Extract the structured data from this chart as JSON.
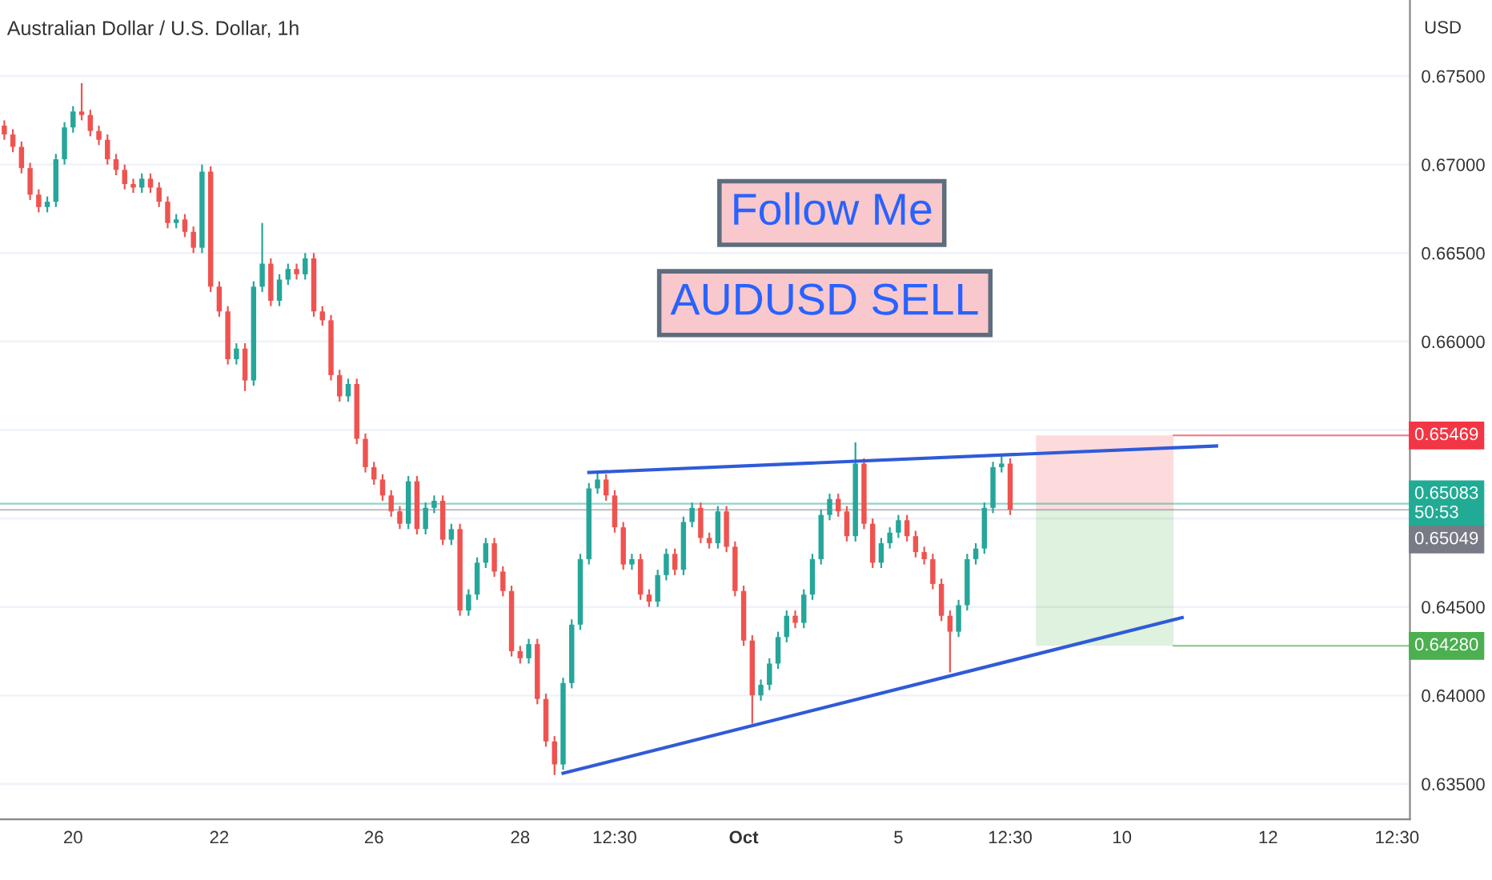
{
  "chart_data": {
    "type": "candlestick",
    "title": "Australian Dollar / U.S. Dollar, 1h",
    "ylabel": "USD",
    "categories": [
      null,
      null,
      null,
      null,
      null,
      null,
      null,
      null,
      "20",
      null,
      null,
      null,
      null,
      null,
      null,
      null,
      null,
      null,
      null,
      null,
      null,
      null,
      null,
      null,
      null,
      "22",
      null,
      null,
      null,
      null,
      null,
      null,
      null,
      null,
      null,
      null,
      null,
      null,
      null,
      null,
      null,
      null,
      null,
      "26",
      null,
      null,
      null,
      null,
      null,
      null,
      null,
      null,
      null,
      null,
      null,
      null,
      null,
      null,
      null,
      null,
      "28",
      null,
      null,
      null,
      null,
      null,
      null,
      null,
      null,
      null,
      null,
      "12:30",
      null,
      null,
      null,
      null,
      null,
      null,
      null,
      null,
      null,
      null,
      null,
      null,
      null,
      null,
      "Oct",
      null,
      null,
      null,
      null,
      null,
      null,
      null,
      null,
      null,
      null,
      null,
      null,
      null,
      null,
      null,
      null,
      null,
      "5",
      null,
      null,
      null,
      null,
      null,
      null,
      null,
      null,
      null,
      null,
      null,
      null,
      "12:30",
      null,
      null,
      null,
      null,
      null,
      null,
      null,
      null,
      null,
      null,
      null,
      null,
      "10",
      null,
      null,
      null,
      null,
      null,
      null,
      null,
      null,
      null,
      null,
      null,
      null,
      null,
      null,
      null,
      null,
      "12",
      null,
      null,
      null,
      null,
      null,
      null,
      null,
      null,
      null,
      null,
      null,
      null,
      null,
      null,
      "12:30",
      null
    ],
    "ohlc": [
      [
        0.6722,
        0.6725,
        0.6714,
        0.6717
      ],
      [
        0.6717,
        0.672,
        0.6707,
        0.671
      ],
      [
        0.671,
        0.6713,
        0.6695,
        0.6698
      ],
      [
        0.6698,
        0.6701,
        0.668,
        0.6683
      ],
      [
        0.6683,
        0.6686,
        0.6673,
        0.6676
      ],
      [
        0.6676,
        0.6682,
        0.6673,
        0.6679
      ],
      [
        0.6679,
        0.6706,
        0.6676,
        0.6703
      ],
      [
        0.6703,
        0.6724,
        0.67,
        0.6721
      ],
      [
        0.6721,
        0.6733,
        0.6718,
        0.673
      ],
      [
        0.673,
        0.6746,
        0.6725,
        0.6728
      ],
      [
        0.6728,
        0.6731,
        0.6716,
        0.6719
      ],
      [
        0.6719,
        0.6722,
        0.6711,
        0.6714
      ],
      [
        0.6714,
        0.6717,
        0.67,
        0.6703
      ],
      [
        0.6703,
        0.6706,
        0.6694,
        0.6697
      ],
      [
        0.6697,
        0.67,
        0.6686,
        0.6689
      ],
      [
        0.6689,
        0.6692,
        0.6684,
        0.6687
      ],
      [
        0.6687,
        0.6695,
        0.6684,
        0.6692
      ],
      [
        0.6692,
        0.6695,
        0.6684,
        0.6687
      ],
      [
        0.6687,
        0.669,
        0.6676,
        0.6679
      ],
      [
        0.6679,
        0.6682,
        0.6664,
        0.6667
      ],
      [
        0.6667,
        0.6672,
        0.6664,
        0.6669
      ],
      [
        0.6669,
        0.6672,
        0.6659,
        0.6662
      ],
      [
        0.6662,
        0.6665,
        0.665,
        0.6653
      ],
      [
        0.6653,
        0.67,
        0.665,
        0.6696
      ],
      [
        0.6696,
        0.6699,
        0.6628,
        0.6631
      ],
      [
        0.6631,
        0.6634,
        0.6614,
        0.6617
      ],
      [
        0.6617,
        0.662,
        0.6587,
        0.659
      ],
      [
        0.659,
        0.6599,
        0.6587,
        0.6596
      ],
      [
        0.6596,
        0.6599,
        0.6572,
        0.6578
      ],
      [
        0.6578,
        0.6634,
        0.6575,
        0.6631
      ],
      [
        0.6631,
        0.6667,
        0.6628,
        0.6644
      ],
      [
        0.6644,
        0.6647,
        0.662,
        0.6623
      ],
      [
        0.6623,
        0.6638,
        0.662,
        0.6635
      ],
      [
        0.6635,
        0.6644,
        0.6632,
        0.6641
      ],
      [
        0.6641,
        0.6644,
        0.6635,
        0.6638
      ],
      [
        0.6638,
        0.665,
        0.6635,
        0.6647
      ],
      [
        0.6647,
        0.665,
        0.6614,
        0.6617
      ],
      [
        0.6617,
        0.662,
        0.6609,
        0.6612
      ],
      [
        0.6612,
        0.6615,
        0.6578,
        0.6581
      ],
      [
        0.6581,
        0.6584,
        0.6566,
        0.6569
      ],
      [
        0.6569,
        0.6579,
        0.6566,
        0.6576
      ],
      [
        0.6576,
        0.6579,
        0.6542,
        0.6545
      ],
      [
        0.6545,
        0.6548,
        0.6526,
        0.6529
      ],
      [
        0.6529,
        0.6532,
        0.6519,
        0.6522
      ],
      [
        0.6522,
        0.6525,
        0.651,
        0.6513
      ],
      [
        0.6513,
        0.6516,
        0.6501,
        0.6504
      ],
      [
        0.6504,
        0.6507,
        0.6494,
        0.6497
      ],
      [
        0.6497,
        0.6524,
        0.6494,
        0.6521
      ],
      [
        0.6521,
        0.6524,
        0.6491,
        0.6494
      ],
      [
        0.6494,
        0.6509,
        0.6491,
        0.6506
      ],
      [
        0.6506,
        0.6513,
        0.6503,
        0.651
      ],
      [
        0.651,
        0.6513,
        0.6485,
        0.6488
      ],
      [
        0.6488,
        0.6497,
        0.6485,
        0.6494
      ],
      [
        0.6494,
        0.6497,
        0.6445,
        0.6448
      ],
      [
        0.6448,
        0.646,
        0.6445,
        0.6457
      ],
      [
        0.6457,
        0.6478,
        0.6454,
        0.6475
      ],
      [
        0.6475,
        0.6489,
        0.6472,
        0.6486
      ],
      [
        0.6486,
        0.6489,
        0.6467,
        0.647
      ],
      [
        0.647,
        0.6473,
        0.6456,
        0.6459
      ],
      [
        0.6459,
        0.6462,
        0.6422,
        0.6425
      ],
      [
        0.6425,
        0.6428,
        0.6418,
        0.6421
      ],
      [
        0.6421,
        0.6432,
        0.6418,
        0.6429
      ],
      [
        0.6429,
        0.6432,
        0.6395,
        0.6398
      ],
      [
        0.6398,
        0.6401,
        0.6371,
        0.6374
      ],
      [
        0.6374,
        0.6377,
        0.6355,
        0.6361
      ],
      [
        0.6361,
        0.641,
        0.6358,
        0.6407
      ],
      [
        0.6407,
        0.6443,
        0.6404,
        0.644
      ],
      [
        0.644,
        0.648,
        0.6437,
        0.6477
      ],
      [
        0.6477,
        0.652,
        0.6474,
        0.6517
      ],
      [
        0.6517,
        0.6526,
        0.6514,
        0.6522
      ],
      [
        0.6522,
        0.6525,
        0.651,
        0.6513
      ],
      [
        0.6513,
        0.6516,
        0.6492,
        0.6495
      ],
      [
        0.6495,
        0.6498,
        0.6471,
        0.6474
      ],
      [
        0.6474,
        0.648,
        0.6471,
        0.6477
      ],
      [
        0.6477,
        0.648,
        0.6454,
        0.6457
      ],
      [
        0.6457,
        0.646,
        0.645,
        0.6453
      ],
      [
        0.6453,
        0.6471,
        0.645,
        0.6468
      ],
      [
        0.6468,
        0.6483,
        0.6465,
        0.648
      ],
      [
        0.648,
        0.6483,
        0.6468,
        0.6471
      ],
      [
        0.6471,
        0.6501,
        0.6468,
        0.6498
      ],
      [
        0.6498,
        0.6509,
        0.6495,
        0.6506
      ],
      [
        0.6506,
        0.6509,
        0.6486,
        0.6489
      ],
      [
        0.6489,
        0.6492,
        0.6483,
        0.6486
      ],
      [
        0.6486,
        0.6507,
        0.6483,
        0.6504
      ],
      [
        0.6504,
        0.6507,
        0.6481,
        0.6484
      ],
      [
        0.6484,
        0.6487,
        0.6456,
        0.6459
      ],
      [
        0.6459,
        0.6462,
        0.6428,
        0.6431
      ],
      [
        0.6431,
        0.6434,
        0.6384,
        0.64
      ],
      [
        0.64,
        0.6409,
        0.6397,
        0.6406
      ],
      [
        0.6406,
        0.6421,
        0.6403,
        0.6418
      ],
      [
        0.6418,
        0.6436,
        0.6415,
        0.6433
      ],
      [
        0.6433,
        0.6448,
        0.643,
        0.6445
      ],
      [
        0.6445,
        0.6448,
        0.6438,
        0.6441
      ],
      [
        0.6441,
        0.646,
        0.6438,
        0.6457
      ],
      [
        0.6457,
        0.648,
        0.6454,
        0.6477
      ],
      [
        0.6477,
        0.6505,
        0.6474,
        0.6502
      ],
      [
        0.6502,
        0.6514,
        0.6499,
        0.6511
      ],
      [
        0.6511,
        0.6514,
        0.6501,
        0.6504
      ],
      [
        0.6504,
        0.6507,
        0.6487,
        0.649
      ],
      [
        0.649,
        0.6543,
        0.6487,
        0.6531
      ],
      [
        0.6531,
        0.6534,
        0.6494,
        0.6497
      ],
      [
        0.6497,
        0.65,
        0.6472,
        0.6475
      ],
      [
        0.6475,
        0.6489,
        0.6472,
        0.6486
      ],
      [
        0.6486,
        0.6495,
        0.6483,
        0.6492
      ],
      [
        0.6492,
        0.6502,
        0.6489,
        0.6499
      ],
      [
        0.6499,
        0.6502,
        0.6487,
        0.649
      ],
      [
        0.649,
        0.6493,
        0.6478,
        0.6481
      ],
      [
        0.6481,
        0.6484,
        0.6474,
        0.6477
      ],
      [
        0.6477,
        0.648,
        0.646,
        0.6463
      ],
      [
        0.6463,
        0.6466,
        0.6442,
        0.6445
      ],
      [
        0.6445,
        0.6448,
        0.6413,
        0.6436
      ],
      [
        0.6436,
        0.6454,
        0.6433,
        0.6451
      ],
      [
        0.6451,
        0.648,
        0.6448,
        0.6477
      ],
      [
        0.6477,
        0.6486,
        0.6474,
        0.6483
      ],
      [
        0.6483,
        0.6509,
        0.648,
        0.6506
      ],
      [
        0.6506,
        0.6532,
        0.6503,
        0.6529
      ],
      [
        0.6529,
        0.6536,
        0.6526,
        0.6531
      ],
      [
        0.6531,
        0.6534,
        0.6502,
        0.6505
      ],
      null,
      null,
      null,
      null,
      null,
      null,
      null,
      null,
      null,
      null,
      null,
      null,
      null,
      null,
      null,
      null,
      null,
      null,
      null,
      null,
      null,
      null,
      null,
      null,
      null,
      null,
      null,
      null,
      null,
      null,
      null,
      null,
      null,
      null,
      null,
      null,
      null,
      null,
      null,
      null,
      null,
      null,
      null,
      null,
      null,
      null
    ],
    "colors": [
      "#ef5350",
      "#ef5350",
      "#ef5350",
      "#ef5350",
      "#ef5350",
      "#26a69a",
      "#26a69a",
      "#26a69a",
      "#26a69a",
      "#ef5350",
      "#ef5350",
      "#ef5350",
      "#ef5350",
      "#ef5350",
      "#ef5350",
      "#ef5350",
      "#26a69a",
      "#ef5350",
      "#ef5350",
      "#ef5350",
      "#26a69a",
      "#ef5350",
      "#ef5350",
      "#26a69a",
      "#ef5350",
      "#ef5350",
      "#ef5350",
      "#26a69a",
      "#ef5350",
      "#26a69a",
      "#26a69a",
      "#ef5350",
      "#26a69a",
      "#26a69a",
      "#ef5350",
      "#26a69a",
      "#ef5350",
      "#ef5350",
      "#ef5350",
      "#ef5350",
      "#26a69a",
      "#ef5350",
      "#ef5350",
      "#ef5350",
      "#ef5350",
      "#ef5350",
      "#ef5350",
      "#26a69a",
      "#ef5350",
      "#26a69a",
      "#26a69a",
      "#ef5350",
      "#26a69a",
      "#ef5350",
      "#26a69a",
      "#26a69a",
      "#26a69a",
      "#ef5350",
      "#ef5350",
      "#ef5350",
      "#ef5350",
      "#26a69a",
      "#ef5350",
      "#ef5350",
      "#ef5350",
      "#26a69a",
      "#26a69a",
      "#26a69a",
      "#26a69a",
      "#26a69a",
      "#ef5350",
      "#ef5350",
      "#ef5350",
      "#26a69a",
      "#ef5350",
      "#ef5350",
      "#26a69a",
      "#26a69a",
      "#ef5350",
      "#26a69a",
      "#26a69a",
      "#ef5350",
      "#ef5350",
      "#26a69a",
      "#ef5350",
      "#ef5350",
      "#ef5350",
      "#ef5350",
      "#26a69a",
      "#26a69a",
      "#26a69a",
      "#26a69a",
      "#ef5350",
      "#26a69a",
      "#26a69a",
      "#26a69a",
      "#26a69a",
      "#ef5350",
      "#ef5350",
      "#26a69a",
      "#ef5350",
      "#ef5350",
      "#26a69a",
      "#26a69a",
      "#26a69a",
      "#ef5350",
      "#ef5350",
      "#ef5350",
      "#ef5350",
      "#ef5350",
      "#ef5350",
      "#26a69a",
      "#26a69a",
      "#26a69a",
      "#26a69a",
      "#26a69a",
      "#26a69a",
      "#ef5350",
      null,
      null,
      null,
      null,
      null,
      null,
      null,
      null,
      null,
      null,
      null,
      null,
      null,
      null,
      null,
      null,
      null,
      null,
      null,
      null,
      null,
      null,
      null,
      null,
      null,
      null,
      null,
      null,
      null,
      null,
      null,
      null,
      null,
      null,
      null,
      null,
      null,
      null,
      null,
      null,
      null,
      null,
      null,
      null,
      null,
      null
    ],
    "series": [
      {
        "type": "line",
        "color": "#2f5bd8",
        "values": [
          null,
          null,
          null,
          null,
          null,
          null,
          null,
          null,
          null,
          null,
          null,
          null,
          null,
          null,
          null,
          null,
          null,
          null,
          null,
          null,
          null,
          null,
          null,
          null,
          null,
          null,
          null,
          null,
          null,
          null,
          null,
          null,
          null,
          null,
          null,
          null,
          null,
          null,
          null,
          null,
          null,
          null,
          null,
          null,
          null,
          null,
          null,
          null,
          null,
          null,
          null,
          null,
          null,
          null,
          null,
          null,
          null,
          null,
          null,
          null,
          null,
          null,
          null,
          null,
          null,
          null,
          null,
          null,
          0.6526,
          null,
          null,
          null,
          null,
          null,
          null,
          null,
          null,
          null,
          null,
          null,
          null,
          null,
          null,
          null,
          null,
          null,
          null,
          null,
          null,
          null,
          null,
          null,
          null,
          null,
          null,
          null,
          null,
          null,
          null,
          null,
          null,
          null,
          null,
          null,
          null,
          null,
          null,
          null,
          null,
          null,
          null,
          null,
          null,
          null,
          null,
          null,
          null,
          null,
          null,
          null,
          null,
          null,
          null,
          null,
          null,
          null,
          null,
          null,
          null,
          null,
          null,
          null,
          null,
          null,
          null,
          null,
          null,
          null,
          null,
          null,
          null,
          0.6541,
          null,
          null,
          null,
          null,
          null,
          null,
          null,
          null,
          null,
          null,
          null,
          null,
          null,
          null,
          null,
          null,
          null,
          null,
          null,
          null,
          null,
          null
        ]
      },
      {
        "type": "line",
        "color": "#2f5bd8",
        "values": [
          null,
          null,
          null,
          null,
          null,
          null,
          null,
          null,
          null,
          null,
          null,
          null,
          null,
          null,
          null,
          null,
          null,
          null,
          null,
          null,
          null,
          null,
          null,
          null,
          null,
          null,
          null,
          null,
          null,
          null,
          null,
          null,
          null,
          null,
          null,
          null,
          null,
          null,
          null,
          null,
          null,
          null,
          null,
          null,
          null,
          null,
          null,
          null,
          null,
          null,
          null,
          null,
          null,
          null,
          null,
          null,
          null,
          null,
          null,
          null,
          null,
          null,
          null,
          null,
          null,
          0.6356,
          null,
          null,
          null,
          null,
          null,
          null,
          null,
          null,
          null,
          null,
          null,
          null,
          null,
          null,
          null,
          null,
          null,
          null,
          null,
          null,
          null,
          null,
          null,
          null,
          null,
          null,
          null,
          null,
          null,
          null,
          null,
          null,
          null,
          null,
          null,
          null,
          null,
          null,
          null,
          null,
          null,
          null,
          null,
          null,
          null,
          null,
          null,
          null,
          null,
          null,
          null,
          null,
          null,
          null,
          null,
          null,
          null,
          null,
          null,
          null,
          null,
          null,
          null,
          null,
          null,
          null,
          null,
          null,
          null,
          null,
          null,
          0.6444,
          null,
          null,
          null,
          null,
          null,
          null,
          null,
          null,
          null,
          null,
          null,
          null,
          null,
          null,
          null,
          null,
          null,
          null,
          null,
          null,
          null,
          null,
          null,
          null,
          null,
          null
        ]
      }
    ],
    "ylim": [
      0.633,
      0.6793
    ],
    "yticks": [
      {
        "value": 0.635,
        "label": "0.63500"
      },
      {
        "value": 0.64,
        "label": "0.64000"
      },
      {
        "value": 0.645,
        "label": "0.64500"
      },
      {
        "value": 0.65,
        "label": null
      },
      {
        "value": 0.655,
        "label": null
      },
      {
        "value": 0.66,
        "label": "0.66000"
      },
      {
        "value": 0.665,
        "label": "0.66500"
      },
      {
        "value": 0.67,
        "label": "0.67000"
      },
      {
        "value": 0.675,
        "label": "0.67500"
      }
    ],
    "grid": "y",
    "ref_lines": [
      {
        "axis": "y",
        "value": 0.65083,
        "label": "0.65083\n50:53",
        "color": "#22ab94"
      },
      {
        "axis": "y",
        "value": 0.65049,
        "label": "0.65049",
        "color": "#787b86"
      }
    ],
    "bands": [
      {
        "axis": "y",
        "from": 0.65469,
        "to": 0.65049,
        "label": "0.65469",
        "color": "#f23645"
      },
      {
        "axis": "y",
        "from": 0.6428,
        "to": 0.65049,
        "label": "0.64280",
        "color": "#4caf50"
      }
    ],
    "annotations": [
      "Follow Me",
      "AUDUSD SELL"
    ]
  }
}
